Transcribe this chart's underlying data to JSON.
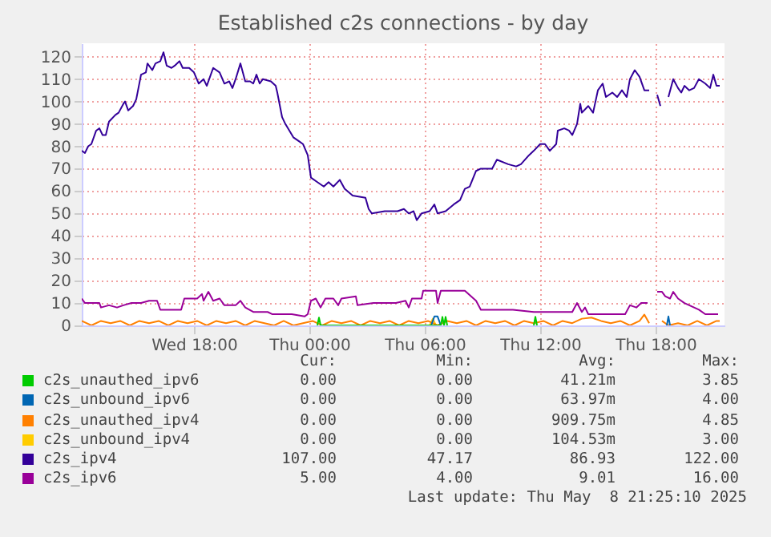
{
  "chart_data": {
    "type": "line",
    "title": "Established c2s connections - by day",
    "xlim": [
      "2025-05-07T12:10",
      "2025-05-08T21:35"
    ],
    "xticks": [
      {
        "value": "2025-05-07T18:00",
        "label": "Wed 18:00"
      },
      {
        "value": "2025-05-08T00:00",
        "label": "Thu 00:00"
      },
      {
        "value": "2025-05-08T06:00",
        "label": "Thu 06:00"
      },
      {
        "value": "2025-05-08T12:00",
        "label": "Thu 12:00"
      },
      {
        "value": "2025-05-08T18:00",
        "label": "Thu 18:00"
      }
    ],
    "ylim": [
      0,
      126
    ],
    "yticks": [
      0,
      10,
      20,
      30,
      40,
      50,
      60,
      70,
      80,
      90,
      100,
      110,
      120
    ],
    "grid": true,
    "legend": "bottom",
    "series": [
      {
        "name": "c2s_unauthed_ipv6",
        "color": "#00cc00",
        "x": [
          "2025-05-08T00:25",
          "2025-05-08T00:30",
          "2025-05-08T00:35",
          "2025-05-08T06:50",
          "2025-05-08T06:55",
          "2025-05-08T07:00",
          "2025-05-08T07:05",
          "2025-05-08T07:10",
          "2025-05-08T07:15",
          "2025-05-08T11:40",
          "2025-05-08T11:45",
          "2025-05-08T11:50"
        ],
        "values": [
          0,
          3.5,
          0,
          0,
          3.8,
          0,
          3.8,
          0,
          null,
          0,
          3.85,
          0
        ]
      },
      {
        "name": "c2s_unbound_ipv6",
        "color": "#0066b3",
        "x": [
          "2025-05-08T06:20",
          "2025-05-08T06:30",
          "2025-05-08T06:40",
          "2025-05-08T06:50",
          "2025-05-08T06:55",
          "2025-05-08T18:35",
          "2025-05-08T18:40",
          "2025-05-08T18:45"
        ],
        "values": [
          0,
          4,
          4,
          0,
          null,
          0,
          4,
          0
        ]
      },
      {
        "name": "c2s_unauthed_ipv4",
        "color": "#ff8000",
        "x": [
          "2025-05-07T12:10",
          "2025-05-07T12:40",
          "2025-05-07T13:10",
          "2025-05-07T13:40",
          "2025-05-07T14:10",
          "2025-05-07T14:40",
          "2025-05-07T15:10",
          "2025-05-07T15:40",
          "2025-05-07T16:10",
          "2025-05-07T16:40",
          "2025-05-07T17:10",
          "2025-05-07T17:40",
          "2025-05-07T18:10",
          "2025-05-07T18:40",
          "2025-05-07T19:10",
          "2025-05-07T19:40",
          "2025-05-07T20:10",
          "2025-05-07T20:40",
          "2025-05-07T21:10",
          "2025-05-07T21:40",
          "2025-05-07T22:10",
          "2025-05-07T22:40",
          "2025-05-07T23:10",
          "2025-05-07T23:40",
          "2025-05-08T00:10",
          "2025-05-08T00:40",
          "2025-05-08T01:10",
          "2025-05-08T01:40",
          "2025-05-08T02:10",
          "2025-05-08T02:40",
          "2025-05-08T03:10",
          "2025-05-08T03:40",
          "2025-05-08T04:10",
          "2025-05-08T04:40",
          "2025-05-08T05:10",
          "2025-05-08T05:40",
          "2025-05-08T06:10",
          "2025-05-08T06:40",
          "2025-05-08T07:10",
          "2025-05-08T07:40",
          "2025-05-08T08:10",
          "2025-05-08T08:40",
          "2025-05-08T09:10",
          "2025-05-08T09:40",
          "2025-05-08T10:10",
          "2025-05-08T10:40",
          "2025-05-08T11:10",
          "2025-05-08T11:40",
          "2025-05-08T12:10",
          "2025-05-08T12:40",
          "2025-05-08T13:10",
          "2025-05-08T13:40",
          "2025-05-08T14:10",
          "2025-05-08T14:40",
          "2025-05-08T15:10",
          "2025-05-08T15:40",
          "2025-05-08T16:10",
          "2025-05-08T16:40",
          "2025-05-08T17:10",
          "2025-05-08T17:25",
          "2025-05-08T17:40",
          "2025-05-08T17:55",
          "2025-05-08T18:20",
          "2025-05-08T18:40",
          "2025-05-08T19:10",
          "2025-05-08T19:40",
          "2025-05-08T20:10",
          "2025-05-08T20:40",
          "2025-05-08T21:10",
          "2025-05-08T21:20"
        ],
        "values": [
          2,
          0,
          2,
          1,
          2,
          0,
          2,
          1,
          2,
          0,
          2,
          1,
          2,
          0,
          2,
          1,
          2,
          0,
          2,
          1,
          0,
          2,
          0,
          1,
          2,
          0,
          2,
          1,
          2,
          0,
          2,
          1,
          2,
          0,
          2,
          1,
          2,
          0,
          2,
          1,
          2,
          0,
          2,
          1,
          2,
          0,
          2,
          1,
          2,
          0,
          2,
          1,
          3,
          3.5,
          2,
          1,
          2,
          0,
          2,
          4.85,
          1,
          null,
          2,
          0,
          1,
          0,
          2,
          0,
          2,
          2
        ]
      },
      {
        "name": "c2s_unbound_ipv4",
        "color": "#ffcc00",
        "x": [
          "2025-05-08T06:15",
          "2025-05-08T06:25",
          "2025-05-08T06:35"
        ],
        "values": [
          0,
          3,
          0
        ]
      },
      {
        "name": "c2s_ipv4",
        "color": "#330099",
        "x": [
          "2025-05-07T12:10",
          "2025-05-07T12:20",
          "2025-05-07T12:30",
          "2025-05-07T12:40",
          "2025-05-07T12:55",
          "2025-05-07T13:05",
          "2025-05-07T13:15",
          "2025-05-07T13:25",
          "2025-05-07T13:35",
          "2025-05-07T13:55",
          "2025-05-07T14:05",
          "2025-05-07T14:20",
          "2025-05-07T14:25",
          "2025-05-07T14:35",
          "2025-05-07T14:50",
          "2025-05-07T15:00",
          "2025-05-07T15:15",
          "2025-05-07T15:30",
          "2025-05-07T15:35",
          "2025-05-07T15:50",
          "2025-05-07T16:00",
          "2025-05-07T16:15",
          "2025-05-07T16:25",
          "2025-05-07T16:35",
          "2025-05-07T16:50",
          "2025-05-07T17:00",
          "2025-05-07T17:15",
          "2025-05-07T17:25",
          "2025-05-07T17:45",
          "2025-05-07T18:00",
          "2025-05-07T18:15",
          "2025-05-07T18:30",
          "2025-05-07T18:40",
          "2025-05-07T19:00",
          "2025-05-07T19:20",
          "2025-05-07T19:35",
          "2025-05-07T19:50",
          "2025-05-07T20:00",
          "2025-05-07T20:10",
          "2025-05-07T20:25",
          "2025-05-07T20:40",
          "2025-05-07T20:55",
          "2025-05-07T21:05",
          "2025-05-07T21:15",
          "2025-05-07T21:25",
          "2025-05-07T21:35",
          "2025-05-07T22:00",
          "2025-05-07T22:15",
          "2025-05-07T22:20",
          "2025-05-07T22:35",
          "2025-05-07T22:45",
          "2025-05-07T23:10",
          "2025-05-07T23:30",
          "2025-05-07T23:40",
          "2025-05-07T23:55",
          "2025-05-08T00:05",
          "2025-05-08T00:25",
          "2025-05-08T00:45",
          "2025-05-08T01:00",
          "2025-05-08T01:15",
          "2025-05-08T01:35",
          "2025-05-08T01:50",
          "2025-05-08T02:15",
          "2025-05-08T02:55",
          "2025-05-08T03:05",
          "2025-05-08T03:15",
          "2025-05-08T03:55",
          "2025-05-08T04:35",
          "2025-05-08T04:55",
          "2025-05-08T05:10",
          "2025-05-08T05:25",
          "2025-05-08T05:35",
          "2025-05-08T05:50",
          "2025-05-08T06:15",
          "2025-05-08T06:30",
          "2025-05-08T06:40",
          "2025-05-08T07:05",
          "2025-05-08T07:30",
          "2025-05-08T07:50",
          "2025-05-08T08:05",
          "2025-05-08T08:20",
          "2025-05-08T08:40",
          "2025-05-08T08:55",
          "2025-05-08T09:30",
          "2025-05-08T09:45",
          "2025-05-08T10:20",
          "2025-05-08T10:45",
          "2025-05-08T11:00",
          "2025-05-08T11:25",
          "2025-05-08T11:40",
          "2025-05-08T12:00",
          "2025-05-08T12:15",
          "2025-05-08T12:30",
          "2025-05-08T12:50",
          "2025-05-08T12:55",
          "2025-05-08T13:15",
          "2025-05-08T13:30",
          "2025-05-08T13:40",
          "2025-05-08T13:55",
          "2025-05-08T14:05",
          "2025-05-08T14:10",
          "2025-05-08T14:30",
          "2025-05-08T14:45",
          "2025-05-08T15:00",
          "2025-05-08T15:15",
          "2025-05-08T15:25",
          "2025-05-08T15:45",
          "2025-05-08T16:00",
          "2025-05-08T16:15",
          "2025-05-08T16:30",
          "2025-05-08T16:40",
          "2025-05-08T16:55",
          "2025-05-08T17:10",
          "2025-05-08T17:25",
          "2025-05-08T17:40",
          "2025-05-08T17:55",
          "2025-05-08T18:05",
          "2025-05-08T18:15",
          "2025-05-08T18:25",
          "2025-05-08T18:40",
          "2025-05-08T18:55",
          "2025-05-08T19:10",
          "2025-05-08T19:20",
          "2025-05-08T19:30",
          "2025-05-08T19:45",
          "2025-05-08T20:00",
          "2025-05-08T20:15",
          "2025-05-08T20:35",
          "2025-05-08T20:50",
          "2025-05-08T21:00",
          "2025-05-08T21:10",
          "2025-05-08T21:20"
        ],
        "values": [
          78,
          77,
          80,
          81,
          87,
          88,
          85,
          85,
          91,
          94,
          95,
          99,
          100,
          96,
          98,
          101,
          112,
          113,
          117,
          114,
          117,
          118,
          122,
          116,
          115,
          116,
          118,
          115,
          115,
          113,
          108,
          110,
          107,
          115,
          113,
          108,
          109,
          106,
          110,
          117,
          109,
          109,
          108,
          112,
          108,
          110,
          109,
          107,
          104,
          93,
          90,
          84,
          82,
          81,
          76,
          66,
          64,
          62,
          64,
          62,
          65,
          61,
          58,
          57,
          52,
          50,
          51,
          51,
          52,
          50,
          51,
          47,
          50,
          51,
          54,
          50,
          51,
          54,
          56,
          61,
          62,
          69,
          70,
          70,
          74,
          72,
          71,
          72,
          76,
          78,
          81,
          81,
          78,
          81,
          87,
          88,
          87,
          85,
          90,
          99,
          95,
          98,
          95,
          105,
          108,
          102,
          104,
          102,
          105,
          102,
          110,
          114,
          111,
          105,
          105,
          null,
          103,
          98,
          null,
          102,
          110,
          106,
          104,
          107,
          105,
          106,
          110,
          108,
          106,
          112,
          107,
          107
        ]
      },
      {
        "name": "c2s_ipv6",
        "color": "#990099",
        "x": [
          "2025-05-07T12:10",
          "2025-05-07T12:20",
          "2025-05-07T12:45",
          "2025-05-07T13:05",
          "2025-05-07T13:10",
          "2025-05-07T13:35",
          "2025-05-07T14:00",
          "2025-05-07T14:20",
          "2025-05-07T14:45",
          "2025-05-07T15:15",
          "2025-05-07T15:40",
          "2025-05-07T16:05",
          "2025-05-07T16:15",
          "2025-05-07T17:20",
          "2025-05-07T17:30",
          "2025-05-07T18:10",
          "2025-05-07T18:25",
          "2025-05-07T18:30",
          "2025-05-07T18:45",
          "2025-05-07T19:00",
          "2025-05-07T19:20",
          "2025-05-07T19:35",
          "2025-05-07T20:10",
          "2025-05-07T20:25",
          "2025-05-07T20:40",
          "2025-05-07T21:05",
          "2025-05-07T21:50",
          "2025-05-07T22:05",
          "2025-05-07T23:05",
          "2025-05-07T23:45",
          "2025-05-07T23:55",
          "2025-05-08T00:05",
          "2025-05-08T00:20",
          "2025-05-08T00:35",
          "2025-05-08T00:50",
          "2025-05-08T01:15",
          "2025-05-08T01:30",
          "2025-05-08T01:40",
          "2025-05-08T02:25",
          "2025-05-08T02:30",
          "2025-05-08T03:20",
          "2025-05-08T04:30",
          "2025-05-08T05:00",
          "2025-05-08T05:10",
          "2025-05-08T05:20",
          "2025-05-08T05:50",
          "2025-05-08T05:55",
          "2025-05-08T06:35",
          "2025-05-08T06:40",
          "2025-05-08T06:50",
          "2025-05-08T08:05",
          "2025-05-08T08:40",
          "2025-05-08T08:55",
          "2025-05-08T10:35",
          "2025-05-08T11:40",
          "2025-05-08T13:40",
          "2025-05-08T13:55",
          "2025-05-08T14:10",
          "2025-05-08T14:20",
          "2025-05-08T14:30",
          "2025-05-08T16:25",
          "2025-05-08T16:40",
          "2025-05-08T17:00",
          "2025-05-08T17:15",
          "2025-05-08T17:35",
          "2025-05-08T17:50",
          "2025-05-08T18:05",
          "2025-05-08T18:20",
          "2025-05-08T18:30",
          "2025-05-08T18:45",
          "2025-05-08T18:55",
          "2025-05-08T19:10",
          "2025-05-08T19:30",
          "2025-05-08T20:00",
          "2025-05-08T20:15",
          "2025-05-08T20:35",
          "2025-05-08T21:15"
        ],
        "values": [
          12,
          10,
          10,
          10,
          8,
          9,
          8,
          9,
          10,
          10,
          11,
          11,
          7,
          7,
          12,
          12,
          14,
          11,
          15,
          11,
          12,
          9,
          9,
          11,
          8,
          6,
          6,
          5,
          5,
          4,
          5,
          11,
          12,
          8,
          12,
          12,
          9,
          12,
          13,
          9,
          10,
          10,
          11,
          8,
          12,
          12,
          15.5,
          15.5,
          10,
          15.5,
          15.5,
          11,
          7,
          7,
          6,
          6,
          10,
          6,
          8,
          5,
          5,
          9,
          8,
          10,
          10,
          null,
          15,
          15,
          13,
          12,
          15,
          12,
          10,
          8,
          7,
          5,
          5
        ]
      }
    ],
    "annotations": [
      "Cur:",
      "Min:",
      "Avg:",
      "Max:",
      "0.00",
      "0.00",
      "41.21m",
      "3.85",
      "0.00",
      "0.00",
      "63.97m",
      "4.00",
      "0.00",
      "0.00",
      "909.75m",
      "4.85",
      "0.00",
      "0.00",
      "104.53m",
      "3.00",
      "107.00",
      "47.17",
      "86.93",
      "122.00",
      "5.00",
      "4.00",
      "9.01",
      "16.00",
      "Last update: Thu May  8 21:25:10 2025"
    ]
  }
}
